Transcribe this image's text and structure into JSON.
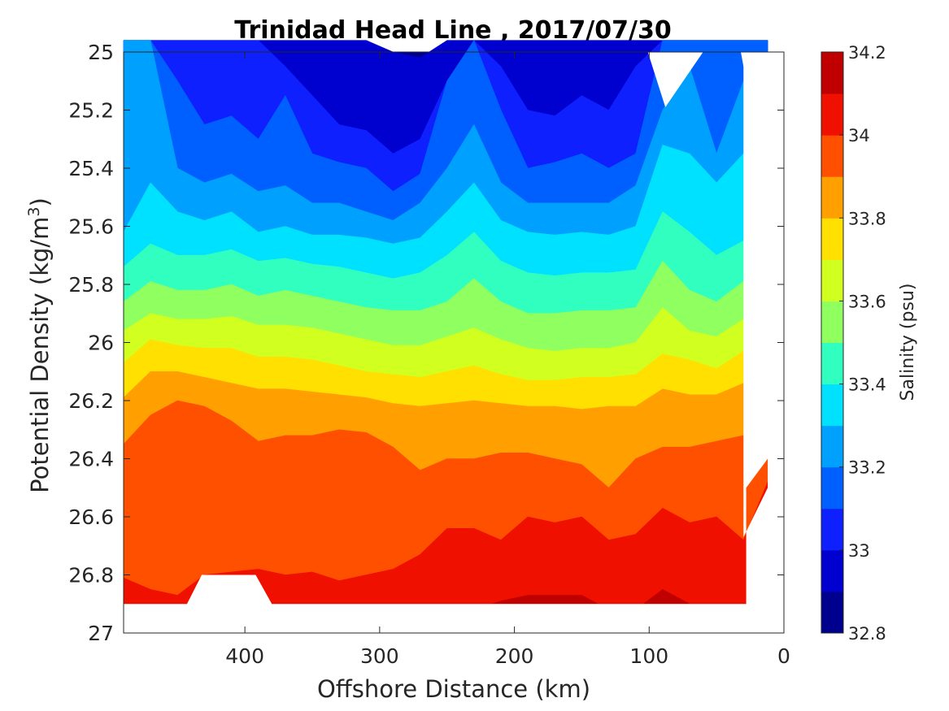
{
  "chart_data": {
    "type": "heatmap",
    "subtype": "filled-contour",
    "title": "Trinidad Head Line , 2017/07/30",
    "xlabel": "Offshore Distance (km)",
    "ylabel": "Potential Density (kg/m^3)",
    "ylabel_parts": {
      "text": "Potential Density (kg/m",
      "sup": "3",
      "close": ")"
    },
    "x_axis": {
      "reversed": true,
      "range": [
        490,
        0
      ],
      "ticks": [
        400,
        300,
        200,
        100,
        0
      ],
      "tick_labels": [
        "400",
        "300",
        "200",
        "100",
        "0"
      ]
    },
    "y_axis": {
      "reversed": true,
      "range": [
        25,
        27
      ],
      "ticks": [
        25,
        25.2,
        25.4,
        25.6,
        25.8,
        26,
        26.2,
        26.4,
        26.6,
        26.8,
        27
      ],
      "tick_labels": [
        "25",
        "25.2",
        "25.4",
        "25.6",
        "25.8",
        "26",
        "26.2",
        "26.4",
        "26.6",
        "26.8",
        "27"
      ]
    },
    "colorbar": {
      "label": "Salinity (psu)",
      "range": [
        32.8,
        34.2
      ],
      "ticks": [
        34.2,
        34,
        33.8,
        33.6,
        33.4,
        33.2,
        33,
        32.8
      ],
      "tick_labels": [
        "34.2",
        "34",
        "33.8",
        "33.6",
        "33.4",
        "33.2",
        "33",
        "32.8"
      ],
      "levels": [
        32.8,
        32.9,
        33.0,
        33.1,
        33.2,
        33.3,
        33.4,
        33.5,
        33.6,
        33.7,
        33.8,
        33.9,
        34.0,
        34.1,
        34.2
      ],
      "colors": [
        "#00008F",
        "#0000CF",
        "#0F20FF",
        "#0060FF",
        "#00A0FF",
        "#00E0FF",
        "#30FFC0",
        "#90FF60",
        "#D0FF20",
        "#FFE000",
        "#FFA000",
        "#FF5000",
        "#F01000",
        "#C00000"
      ]
    },
    "x_stations_km": [
      490,
      470,
      450,
      430,
      410,
      390,
      370,
      350,
      330,
      310,
      290,
      270,
      250,
      230,
      210,
      190,
      170,
      150,
      130,
      110,
      90,
      70,
      50,
      30,
      12
    ],
    "isohaline_depths": [
      {
        "level": 32.9,
        "y": [
          24.96,
          24.96,
          24.96,
          24.96,
          24.96,
          24.96,
          24.96,
          24.96,
          24.96,
          24.96,
          25.0,
          25.02,
          24.96,
          24.96,
          24.96,
          24.96,
          24.96,
          24.96,
          24.96,
          24.96,
          24.96,
          24.96,
          24.96,
          24.96,
          24.96
        ]
      },
      {
        "level": 33.0,
        "y": [
          24.96,
          24.96,
          24.96,
          24.96,
          24.96,
          24.96,
          25.05,
          25.15,
          25.25,
          25.27,
          25.35,
          25.3,
          25.1,
          24.96,
          25.05,
          25.2,
          25.22,
          25.15,
          25.2,
          25.05,
          24.96,
          24.96,
          24.96,
          24.96,
          24.96
        ]
      },
      {
        "level": 33.1,
        "y": [
          24.96,
          24.96,
          25.1,
          25.25,
          25.22,
          25.3,
          25.15,
          25.35,
          25.38,
          25.4,
          25.48,
          25.42,
          25.1,
          24.96,
          25.2,
          25.4,
          25.38,
          25.35,
          25.4,
          25.35,
          24.96,
          24.96,
          24.96,
          24.96,
          24.96
        ]
      },
      {
        "level": 33.2,
        "y": [
          24.96,
          24.96,
          25.4,
          25.45,
          25.42,
          25.48,
          25.46,
          25.52,
          25.52,
          25.55,
          25.58,
          25.52,
          25.4,
          25.25,
          25.45,
          25.52,
          25.52,
          25.52,
          25.52,
          25.46,
          25.2,
          25.05,
          25.35,
          25.1,
          25.28
        ]
      },
      {
        "level": 33.3,
        "y": [
          25.62,
          25.45,
          25.55,
          25.58,
          25.55,
          25.62,
          25.6,
          25.63,
          25.63,
          25.64,
          25.66,
          25.64,
          25.55,
          25.45,
          25.58,
          25.62,
          25.63,
          25.62,
          25.63,
          25.6,
          25.32,
          25.35,
          25.45,
          25.35,
          25.32
        ]
      },
      {
        "level": 33.4,
        "y": [
          25.74,
          25.66,
          25.7,
          25.7,
          25.68,
          25.72,
          25.71,
          25.73,
          25.74,
          25.76,
          25.78,
          25.76,
          25.7,
          25.62,
          25.72,
          25.76,
          25.77,
          25.76,
          25.76,
          25.75,
          25.55,
          25.62,
          25.7,
          25.65,
          25.55
        ]
      },
      {
        "level": 33.5,
        "y": [
          25.86,
          25.79,
          25.82,
          25.82,
          25.8,
          25.84,
          25.82,
          25.84,
          25.86,
          25.88,
          25.89,
          25.89,
          25.86,
          25.78,
          25.86,
          25.9,
          25.9,
          25.89,
          25.89,
          25.88,
          25.72,
          25.82,
          25.86,
          25.79,
          25.73
        ]
      },
      {
        "level": 33.6,
        "y": [
          25.96,
          25.9,
          25.92,
          25.92,
          25.91,
          25.94,
          25.94,
          25.95,
          25.97,
          25.99,
          26.01,
          26.01,
          25.98,
          25.95,
          25.99,
          26.02,
          26.03,
          26.02,
          26.02,
          26.0,
          25.88,
          25.96,
          25.98,
          25.92,
          25.85
        ]
      },
      {
        "level": 33.7,
        "y": [
          26.07,
          25.99,
          26.01,
          26.02,
          26.02,
          26.05,
          26.05,
          26.06,
          26.08,
          26.1,
          26.11,
          26.12,
          26.1,
          26.08,
          26.11,
          26.13,
          26.13,
          26.12,
          26.12,
          26.11,
          26.04,
          26.06,
          26.09,
          26.03,
          25.96
        ]
      },
      {
        "level": 33.8,
        "y": [
          26.19,
          26.1,
          26.1,
          26.12,
          26.14,
          26.16,
          26.16,
          26.17,
          26.18,
          26.19,
          26.21,
          26.22,
          26.21,
          26.2,
          26.21,
          26.22,
          26.22,
          26.23,
          26.22,
          26.22,
          26.16,
          26.18,
          26.18,
          26.14,
          26.09
        ]
      },
      {
        "level": 33.9,
        "y": [
          26.35,
          26.25,
          26.2,
          26.22,
          26.27,
          26.34,
          26.32,
          26.32,
          26.3,
          26.31,
          26.36,
          26.44,
          26.4,
          26.4,
          26.38,
          26.38,
          26.4,
          26.42,
          26.5,
          26.4,
          26.36,
          26.36,
          26.34,
          26.32,
          26.27
        ]
      },
      {
        "level": 34.0,
        "y": [
          26.81,
          26.85,
          26.87,
          26.8,
          26.79,
          26.78,
          26.8,
          26.79,
          26.82,
          26.8,
          26.78,
          26.73,
          26.64,
          26.64,
          26.68,
          26.6,
          26.62,
          26.6,
          26.68,
          26.66,
          26.57,
          26.62,
          26.6,
          26.68,
          26.48
        ]
      },
      {
        "level": 34.1,
        "y": [
          26.92,
          26.92,
          26.92,
          26.92,
          26.92,
          26.92,
          26.92,
          26.92,
          26.92,
          26.92,
          26.92,
          26.92,
          26.92,
          26.92,
          26.89,
          26.87,
          26.87,
          26.87,
          26.92,
          26.92,
          26.85,
          26.9,
          26.92,
          26.92,
          26.92
        ]
      }
    ],
    "data_extent": {
      "x": [
        490,
        30,
        30,
        12,
        12,
        28,
        28,
        380,
        392,
        432,
        443,
        490
      ],
      "y": [
        25,
        25,
        26.67,
        26.5,
        26.4,
        26.5,
        26.9,
        26.9,
        26.8,
        26.8,
        26.9,
        26.9
      ]
    },
    "no_data_notches": [
      {
        "x": [
          101,
          88,
          60
        ],
        "y": [
          25,
          25.19,
          25
        ]
      },
      {
        "x": [
          32,
          28,
          27,
          18,
          12,
          12
        ],
        "y": [
          25,
          25.1,
          25.12,
          25.15,
          25.4,
          25
        ]
      }
    ],
    "bottom_of_data": 26.9,
    "grid": false,
    "legend": "colorbar-right"
  }
}
